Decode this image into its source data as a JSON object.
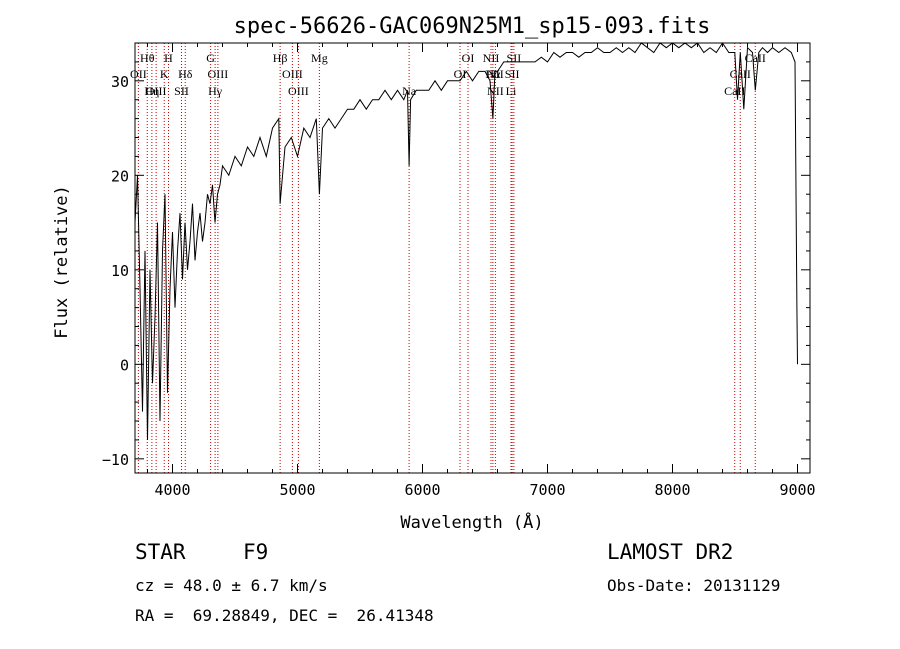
{
  "chart_data": {
    "type": "line",
    "title": "spec-56626-GAC069N25M1_sp15-093.fits",
    "xlabel": "Wavelength (Å)",
    "ylabel": "Flux (relative)",
    "xlim": [
      3700,
      9100
    ],
    "ylim": [
      -11.5,
      34
    ],
    "xticks": [
      4000,
      5000,
      6000,
      7000,
      8000,
      9000
    ],
    "xticklabels": [
      "4000",
      "5000",
      "6000",
      "7000",
      "8000",
      "9000"
    ],
    "yticks": [
      -10,
      0,
      10,
      20,
      30
    ],
    "yticklabels": [
      "−10",
      "0",
      "10",
      "20",
      "30"
    ],
    "grid": false,
    "series": [
      {
        "x": [
          3700,
          3720,
          3740,
          3760,
          3780,
          3800,
          3820,
          3840,
          3860,
          3880,
          3900,
          3920,
          3940,
          3960,
          3980,
          4000,
          4020,
          4040,
          4060,
          4080,
          4100,
          4120,
          4140,
          4160,
          4180,
          4200,
          4220,
          4240,
          4260,
          4280,
          4300,
          4320,
          4340,
          4360,
          4380,
          4400,
          4450,
          4500,
          4550,
          4600,
          4650,
          4700,
          4750,
          4800,
          4850,
          4861,
          4900,
          4950,
          5000,
          5050,
          5100,
          5150,
          5175,
          5200,
          5250,
          5300,
          5350,
          5400,
          5450,
          5500,
          5550,
          5600,
          5650,
          5700,
          5750,
          5800,
          5850,
          5880,
          5893,
          5905,
          5950,
          6000,
          6050,
          6100,
          6150,
          6200,
          6250,
          6300,
          6350,
          6400,
          6450,
          6500,
          6540,
          6563,
          6580,
          6600,
          6650,
          6700,
          6750,
          6800,
          6850,
          6900,
          6950,
          7000,
          7050,
          7100,
          7150,
          7200,
          7250,
          7300,
          7350,
          7400,
          7450,
          7500,
          7550,
          7600,
          7650,
          7700,
          7750,
          7800,
          7850,
          7900,
          7950,
          8000,
          8050,
          8100,
          8150,
          8200,
          8250,
          8300,
          8350,
          8400,
          8450,
          8498,
          8520,
          8542,
          8570,
          8600,
          8640,
          8662,
          8690,
          8720,
          8760,
          8800,
          8850,
          8900,
          8950,
          8980,
          8995,
          9000
        ],
        "y": [
          15,
          20,
          8,
          -5,
          12,
          -8,
          10,
          -2,
          5,
          15,
          -6,
          12,
          18,
          -3,
          8,
          14,
          6,
          12,
          16,
          9,
          15,
          10,
          13,
          17,
          11,
          14,
          16,
          13,
          15,
          18,
          17,
          19,
          15,
          18,
          19,
          21,
          20,
          22,
          21,
          23,
          22,
          24,
          22,
          25,
          26,
          17,
          23,
          24,
          22,
          25,
          24,
          26,
          18,
          25,
          26,
          25,
          26,
          27,
          27,
          28,
          27,
          28,
          28,
          29,
          28,
          29,
          28,
          29,
          21,
          28,
          29,
          29,
          29,
          30,
          29,
          30,
          30,
          30,
          31,
          30,
          31,
          31,
          30,
          26,
          31,
          31,
          32,
          32,
          32,
          32,
          32,
          32,
          32.5,
          32,
          33,
          32.5,
          33,
          33,
          32.5,
          33,
          33,
          33.5,
          33,
          33,
          33.5,
          33,
          33.5,
          33,
          34,
          33.5,
          33,
          34,
          33.5,
          34,
          33.5,
          34,
          33.5,
          34,
          33,
          33.5,
          33,
          34,
          33,
          33,
          28,
          33,
          27,
          33.5,
          33,
          29,
          33,
          33.5,
          33,
          33.5,
          33,
          33.5,
          33,
          32,
          6,
          0
        ]
      }
    ],
    "lines": [
      {
        "name": "Hθ",
        "x": 3798
      },
      {
        "name": "OII",
        "x": 3727
      },
      {
        "name": "OIII",
        "x": 3869
      },
      {
        "name": "Hη",
        "x": 3835
      },
      {
        "name": "H",
        "x": 3968
      },
      {
        "name": "K",
        "x": 3934
      },
      {
        "name": "Hδ",
        "x": 4102
      },
      {
        "name": "SII",
        "x": 4072
      },
      {
        "name": "G",
        "x": 4305
      },
      {
        "name": "OIII",
        "x": 4363
      },
      {
        "name": "Hγ",
        "x": 4341
      },
      {
        "name": "Hβ",
        "x": 4861
      },
      {
        "name": "OIII",
        "x": 4959
      },
      {
        "name": "OIII",
        "x": 5007
      },
      {
        "name": "Mg",
        "x": 5175
      },
      {
        "name": "Na",
        "x": 5893
      },
      {
        "name": "OI",
        "x": 6300
      },
      {
        "name": "OI",
        "x": 6364
      },
      {
        "name": "NII",
        "x": 6548
      },
      {
        "name": "Hα",
        "x": 6563
      },
      {
        "name": "NII",
        "x": 6583
      },
      {
        "name": "SII",
        "x": 6717
      },
      {
        "name": "SII",
        "x": 6731
      },
      {
        "name": "Li",
        "x": 6708
      },
      {
        "name": "CaII",
        "x": 8498
      },
      {
        "name": "CaII",
        "x": 8542
      },
      {
        "name": "CaII",
        "x": 8662
      }
    ]
  },
  "labels": [
    {
      "text": "Hθ",
      "x": 3798,
      "row": 1
    },
    {
      "text": "OII",
      "x": 3727,
      "row": 2
    },
    {
      "text": "OIII",
      "x": 3869,
      "row": 3
    },
    {
      "text": "H",
      "x": 3968,
      "row": 1
    },
    {
      "text": "K",
      "x": 3934,
      "row": 2
    },
    {
      "text": "Hη",
      "x": 3835,
      "row": 3
    },
    {
      "text": "Hδ",
      "x": 4102,
      "row": 2
    },
    {
      "text": "SII",
      "x": 4072,
      "row": 3
    },
    {
      "text": "G",
      "x": 4305,
      "row": 1
    },
    {
      "text": "OIII",
      "x": 4363,
      "row": 2
    },
    {
      "text": "Hγ",
      "x": 4341,
      "row": 3
    },
    {
      "text": "Hβ",
      "x": 4861,
      "row": 1
    },
    {
      "text": "OIII",
      "x": 4959,
      "row": 2
    },
    {
      "text": "OIII",
      "x": 5007,
      "row": 3
    },
    {
      "text": "Mg",
      "x": 5175,
      "row": 1
    },
    {
      "text": "Na",
      "x": 5893,
      "row": 3
    },
    {
      "text": "OI",
      "x": 6364,
      "row": 1
    },
    {
      "text": "OI",
      "x": 6300,
      "row": 2
    },
    {
      "text": "NII",
      "x": 6548,
      "row": 1
    },
    {
      "text": "SII",
      "x": 6731,
      "row": 1
    },
    {
      "text": "Hα",
      "x": 6563,
      "row": 2
    },
    {
      "text": "NII",
      "x": 6583,
      "row": 2
    },
    {
      "text": "SII",
      "x": 6717,
      "row": 2
    },
    {
      "text": "NII",
      "x": 6583,
      "row": 3
    },
    {
      "text": "Li",
      "x": 6708,
      "row": 3
    },
    {
      "text": "CaII",
      "x": 8542,
      "row": 2
    },
    {
      "text": "CaII",
      "x": 8662,
      "row": 1
    },
    {
      "text": "CaII",
      "x": 8498,
      "row": 3
    }
  ],
  "info": {
    "class": "STAR",
    "subclass": "F9",
    "survey": "LAMOST DR2",
    "cz": "cz = 48.0 ± 6.7 km/s",
    "obs_date": "Obs-Date: 20131129",
    "radec": "RA =  69.28849, DEC =  26.41348"
  },
  "colors": {
    "spectrum": "#000000",
    "marker_lines": "#c00000",
    "axes": "#000000"
  }
}
